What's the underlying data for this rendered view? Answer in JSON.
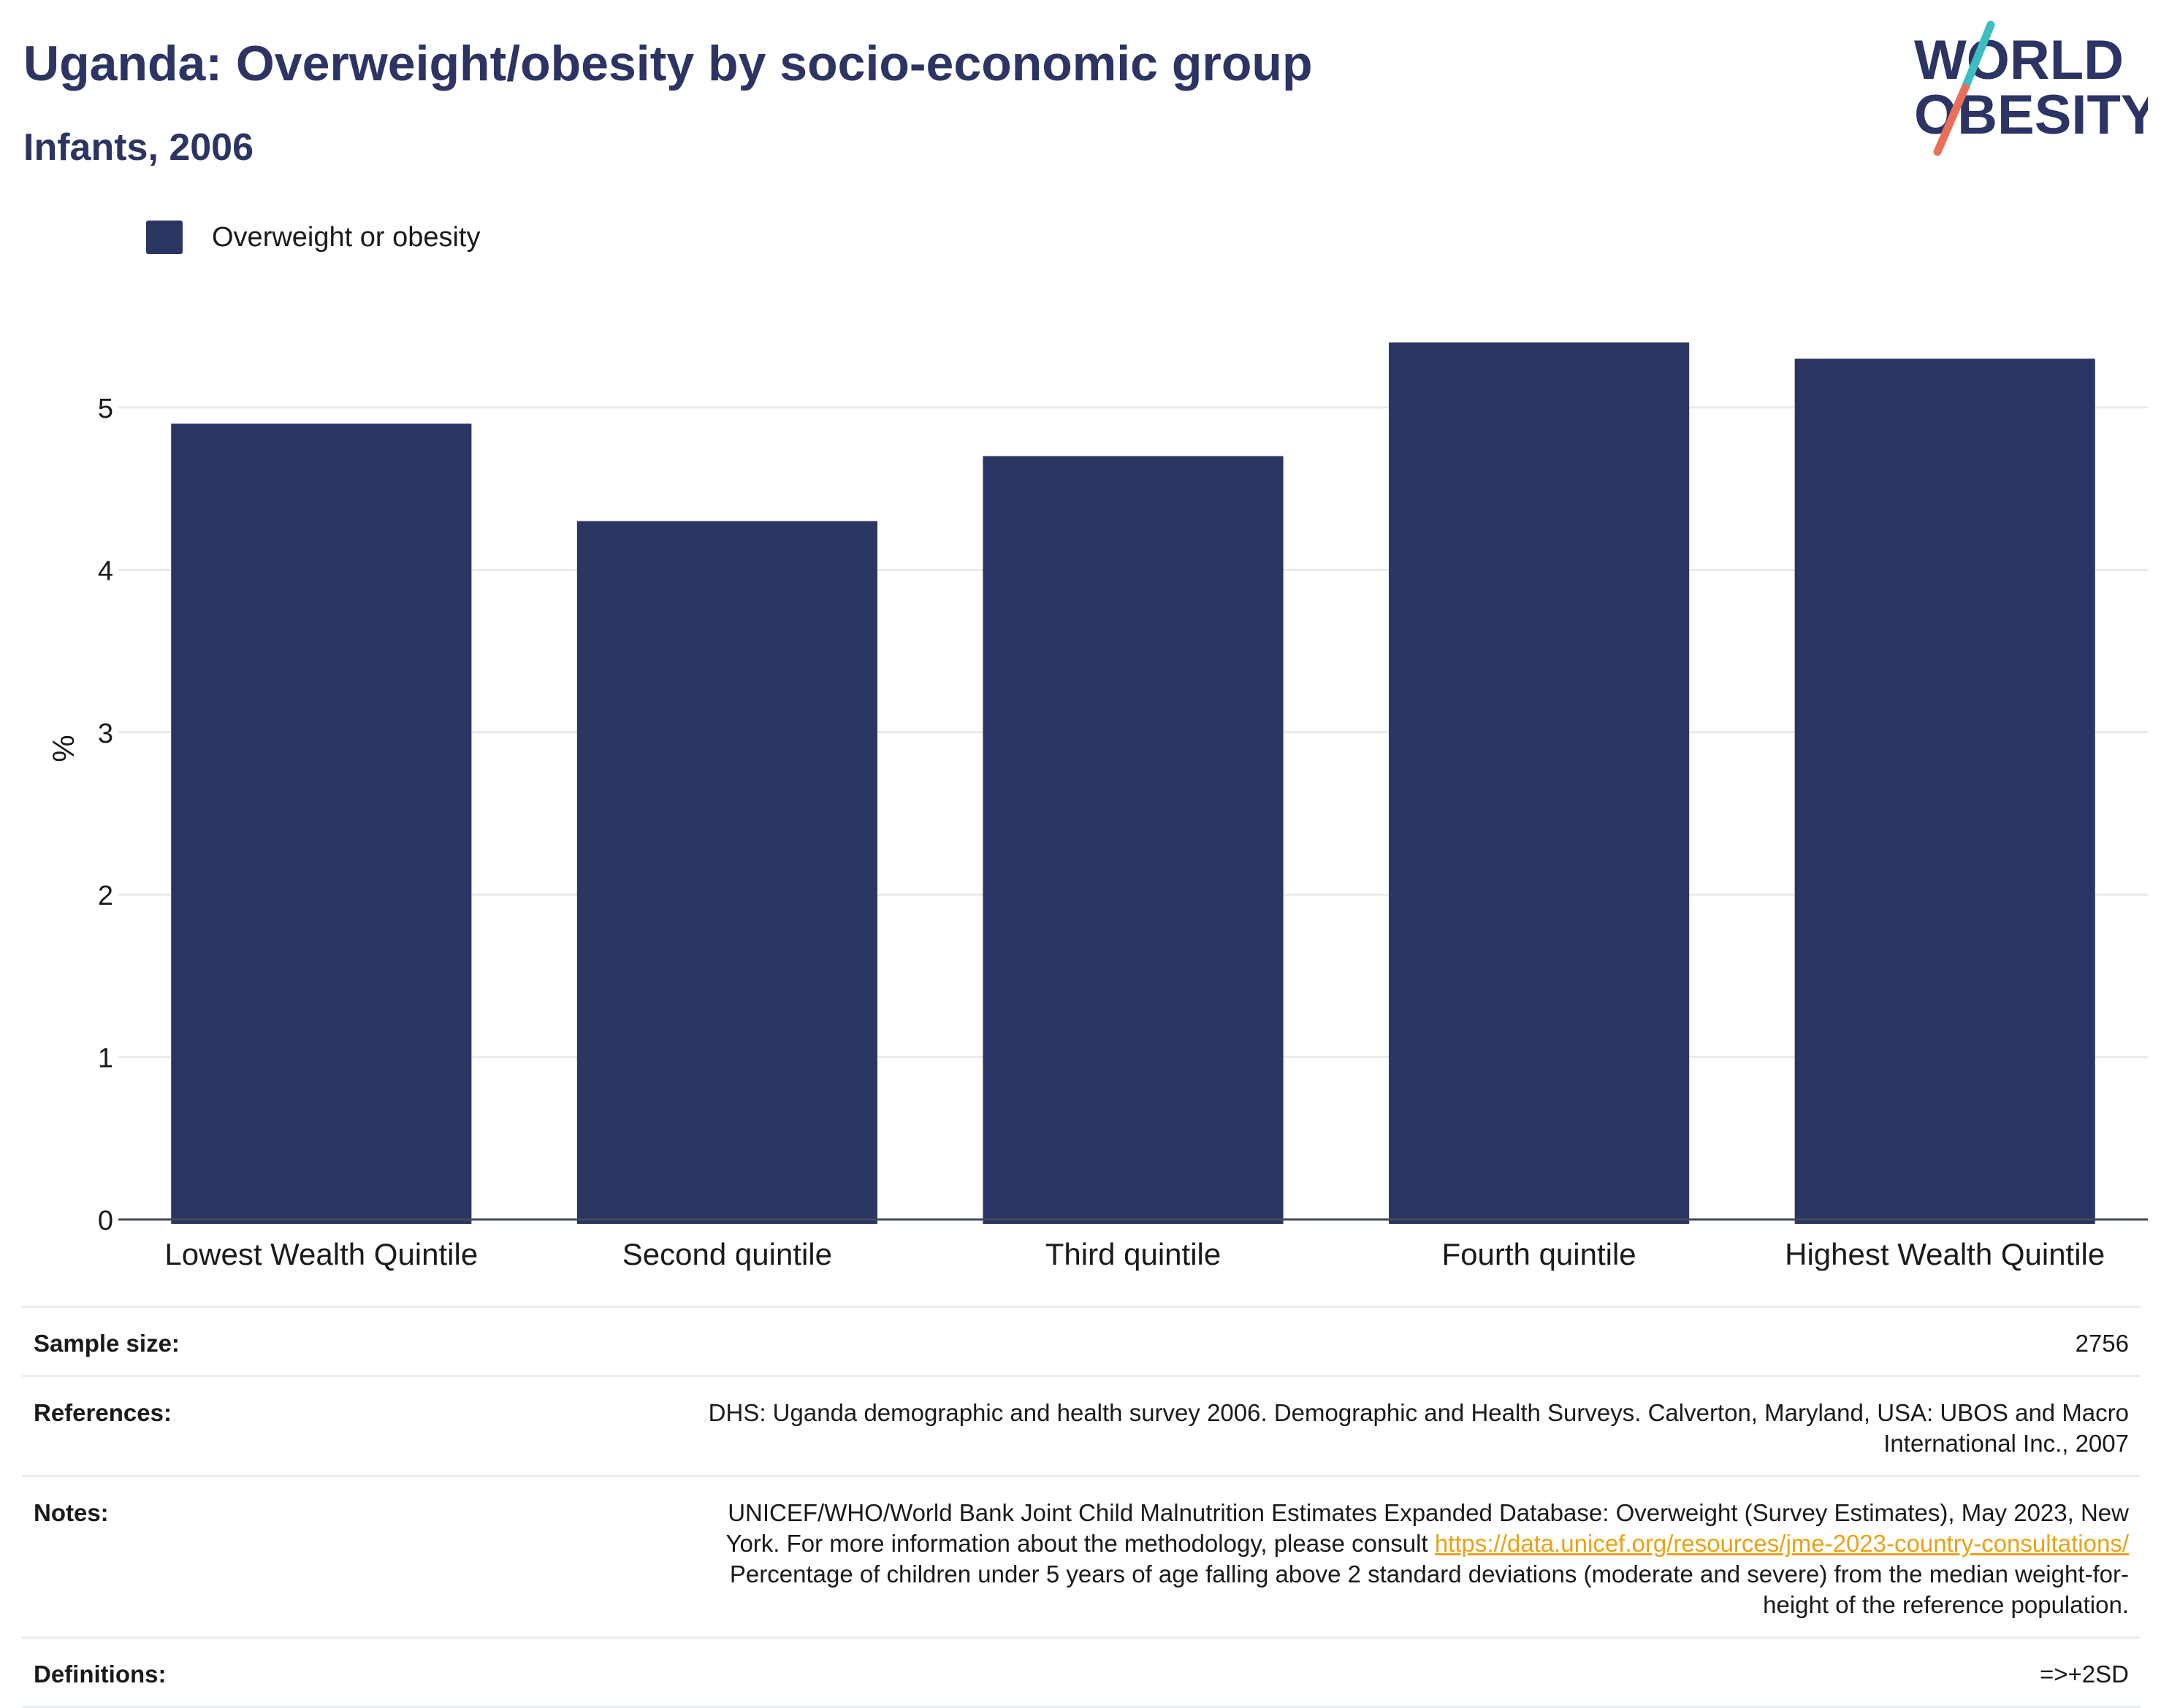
{
  "header": {
    "title": "Uganda: Overweight/obesity by socio-economic group",
    "subtitle": "Infants, 2006"
  },
  "logo": {
    "line1": "WORLD",
    "line2": "OBESITY",
    "text_color": "#2b3462",
    "slash_colors": [
      "#3bbdc2",
      "#e8705a"
    ]
  },
  "chart_data": {
    "type": "bar",
    "categories": [
      "Lowest Wealth Quintile",
      "Second quintile",
      "Third quintile",
      "Fourth quintile",
      "Highest Wealth Quintile"
    ],
    "series": [
      {
        "name": "Overweight or obesity",
        "values": [
          4.9,
          4.3,
          4.7,
          5.4,
          5.3
        ],
        "color": "#2b3562"
      }
    ],
    "ylabel": "%",
    "xlabel": "",
    "ylim": [
      0,
      5.8
    ],
    "yticks": [
      0,
      1,
      2,
      3,
      4,
      5
    ],
    "grid": true,
    "legend_position": "top-left"
  },
  "info": {
    "sample_size_label": "Sample size:",
    "sample_size_value": "2756",
    "references_label": "References:",
    "references_line1": "DHS: Uganda demographic and health survey 2006. Demographic and Health Surveys. Calverton, Maryland, USA: UBOS and Macro",
    "references_line2": "International Inc., 2007",
    "notes_label": "Notes:",
    "notes_line1": "UNICEF/WHO/World Bank Joint Child Malnutrition Estimates Expanded Database: Overweight (Survey Estimates), May 2023, New",
    "notes_line2_pre": "York. For more information about the methodology, please consult ",
    "notes_link": "https://data.unicef.org/resources/jme-2023-country-consultations/",
    "notes_line3": "Percentage of children under 5 years of age falling above 2 standard deviations (moderate and severe) from the median weight-for-",
    "notes_line4": "height of the reference population.",
    "definitions_label": "Definitions:",
    "definitions_value": "=>+2SD"
  }
}
